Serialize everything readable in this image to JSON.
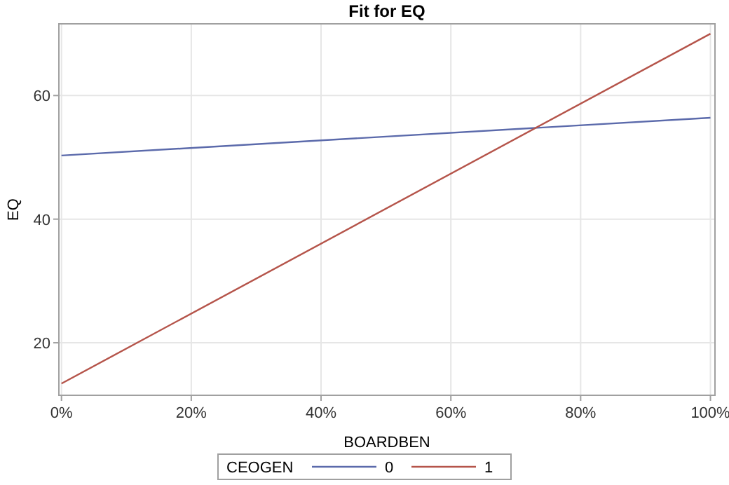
{
  "chart_data": {
    "type": "line",
    "title": "Fit for EQ",
    "xlabel": "BOARDBEN",
    "ylabel": "EQ",
    "legend_title": "CEOGEN",
    "x": [
      0,
      100
    ],
    "series": [
      {
        "name": "0",
        "color": "#5b6aab",
        "values": [
          50.3,
          56.4
        ]
      },
      {
        "name": "1",
        "color": "#b5544a",
        "values": [
          13.4,
          70
        ]
      }
    ],
    "xlim": [
      -0.4,
      100.7
    ],
    "ylim": [
      11.5,
      71.6
    ],
    "xticks": [
      {
        "value": 0,
        "label": "0%"
      },
      {
        "value": 20,
        "label": "20%"
      },
      {
        "value": 40,
        "label": "40%"
      },
      {
        "value": 60,
        "label": "60%"
      },
      {
        "value": 80,
        "label": "80%"
      },
      {
        "value": 100,
        "label": "100%"
      }
    ],
    "yticks": [
      20,
      40,
      60
    ],
    "grid": true,
    "legend": "bottom",
    "marker": "none",
    "line_style": "solid"
  }
}
